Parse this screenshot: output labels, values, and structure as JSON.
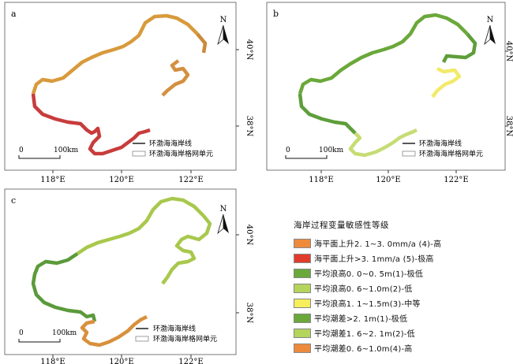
{
  "panels": [
    {
      "id": "a",
      "label": "a",
      "lon_ticks": [
        "118°E",
        "120°E",
        "122°E"
      ],
      "lat_ticks": [
        "40°N",
        "38°N"
      ],
      "north_label": "N",
      "scale": {
        "zero": "0",
        "distance": "100km"
      },
      "map_legend": {
        "line": "环渤海海岸线",
        "grid": "环渤海海岸格网单元"
      },
      "segment_colors": {
        "north": "#d89a3c",
        "main": "#cc8a3a",
        "south": "#c83c3c",
        "inner": "#d49040"
      }
    },
    {
      "id": "b",
      "label": "b",
      "lon_ticks": [
        "118°E",
        "120°E",
        "122°E"
      ],
      "lat_ticks": [
        "40°N",
        "38°N"
      ],
      "north_label": "N",
      "scale": {
        "zero": "0",
        "distance": "100km"
      },
      "map_legend": {
        "line": "环渤海海岸线",
        "grid": "环渤海海岸格网单元"
      },
      "segment_colors": {
        "north": "#6aa83a",
        "main": "#5e9e3a",
        "south": "#c6dc74",
        "inner": "#f2ea6a"
      }
    },
    {
      "id": "c",
      "label": "c",
      "lon_ticks": [
        "118°E",
        "120°E",
        "122°E"
      ],
      "lat_ticks": [
        "40°N",
        "38°N"
      ],
      "north_label": "N",
      "scale": {
        "zero": "0",
        "distance": "100km"
      },
      "map_legend": {
        "line": "环渤海海岸线",
        "grid": "环渤海海岸格网单元"
      },
      "segment_colors": {
        "north": "#a8c84c",
        "main": "#5a9a3a",
        "south": "#d8903c",
        "inner": "#a8c84c"
      }
    }
  ],
  "legend": {
    "title": "海岸过程变量敏感性等级",
    "items": [
      {
        "label": "海平面上升2. 1~3. 0mm/a (4)-高",
        "color": "#ee8a3c"
      },
      {
        "label": "海平面上升>3. 1mm/a (5)-极高",
        "color": "#e03c2c"
      },
      {
        "label": "平均浪高0. 0~0. 5m(1)-极低",
        "color": "#6aa83a"
      },
      {
        "label": "平均浪高0. 6~1.0m(2)-低",
        "color": "#b4d45c"
      },
      {
        "label": "平均浪高1. 1~1.5m(3)-中等",
        "color": "#f6ee5a"
      },
      {
        "label": "平均潮差>2. 1m(1)-极低",
        "color": "#6aa83a"
      },
      {
        "label": "平均潮差1. 6~2. 1m(2)-低",
        "color": "#b4d45c"
      },
      {
        "label": "平均潮差0. 6~1.0m(4)-高",
        "color": "#ee8a3c"
      }
    ]
  }
}
